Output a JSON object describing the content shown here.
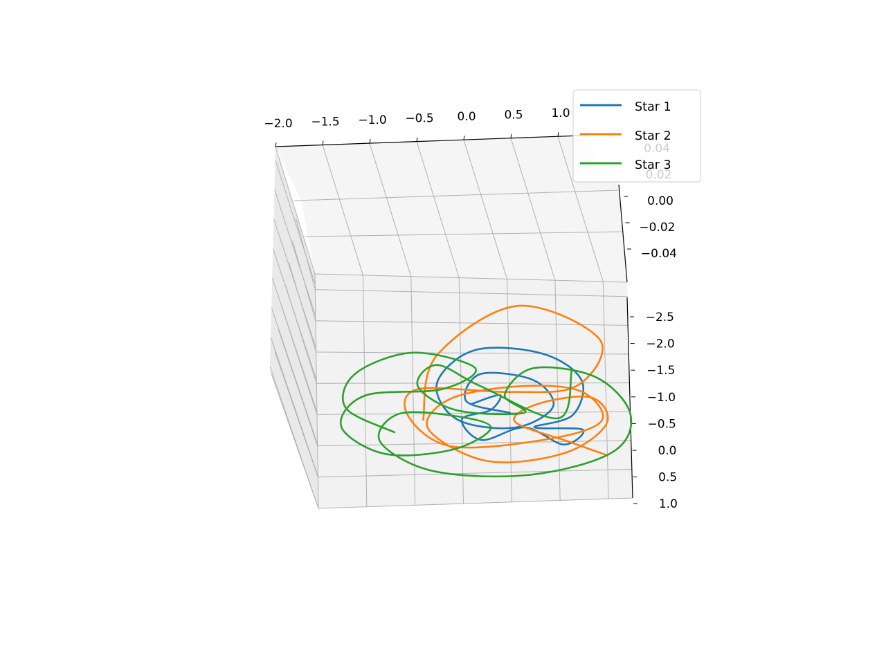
{
  "chart_data": {
    "type": "line",
    "projection": "3d",
    "title": "",
    "xlabel": "",
    "ylabel": "",
    "zlabel": "",
    "grid": true,
    "legend_position": "top-right",
    "x_ticks": [
      "−2.0",
      "−1.5",
      "−1.0",
      "−0.5",
      "0.0",
      "0.5",
      "1.0"
    ],
    "y_ticks": [
      "−2.5",
      "−2.0",
      "−1.5",
      "−1.0",
      "−0.5",
      "0.0",
      "0.5",
      "1.0"
    ],
    "z_ticks": [
      "0.04",
      "0.02",
      "0.00",
      "−0.02",
      "−0.04"
    ],
    "xlim": [
      -2.0,
      1.25
    ],
    "ylim": [
      -2.75,
      1.0
    ],
    "zlim": [
      -0.05,
      0.05
    ],
    "series": [
      {
        "name": "Star 1",
        "color": "#1f77b4",
        "points": [
          [
            0.0,
            -0.5
          ],
          [
            -0.45,
            -0.7
          ],
          [
            -0.3,
            -1.15
          ],
          [
            0.25,
            -1.05
          ],
          [
            0.45,
            -0.6
          ],
          [
            0.05,
            -0.25
          ],
          [
            -0.55,
            -0.4
          ],
          [
            -0.75,
            -1.0
          ],
          [
            -0.35,
            -1.55
          ],
          [
            0.35,
            -1.5
          ],
          [
            0.75,
            -1.05
          ],
          [
            0.65,
            -0.45
          ],
          [
            0.25,
            -0.25
          ],
          [
            0.75,
            -0.2
          ],
          [
            0.55,
            0.05
          ],
          [
            0.15,
            -0.25
          ],
          [
            -0.3,
            -0.05
          ],
          [
            -0.5,
            -0.4
          ],
          [
            -0.2,
            -0.55
          ],
          [
            -0.1,
            -0.8
          ],
          [
            -0.4,
            -0.65
          ]
        ]
      },
      {
        "name": "Star 2",
        "color": "#ff7f0e",
        "points": [
          [
            -0.9,
            -0.4
          ],
          [
            -0.75,
            -1.45
          ],
          [
            0.1,
            -2.3
          ],
          [
            0.95,
            -1.75
          ],
          [
            0.7,
            -0.95
          ],
          [
            0.0,
            -0.85
          ],
          [
            -0.95,
            -0.9
          ],
          [
            -1.05,
            -0.45
          ],
          [
            -0.6,
            0.05
          ],
          [
            0.4,
            -0.05
          ],
          [
            0.95,
            -0.35
          ],
          [
            0.75,
            -0.85
          ],
          [
            0.15,
            -0.95
          ],
          [
            -0.6,
            -0.75
          ],
          [
            -0.85,
            -0.25
          ],
          [
            -0.25,
            0.3
          ],
          [
            0.55,
            0.2
          ],
          [
            1.0,
            -0.3
          ],
          [
            0.85,
            -0.75
          ],
          [
            0.3,
            -0.65
          ],
          [
            0.05,
            -0.35
          ],
          [
            0.6,
            0.0
          ],
          [
            1.0,
            0.25
          ]
        ]
      },
      {
        "name": "Star 3",
        "color": "#2ca02c",
        "points": [
          [
            -1.2,
            -0.2
          ],
          [
            -1.7,
            -0.6
          ],
          [
            -1.6,
            -1.15
          ],
          [
            -1.0,
            -1.5
          ],
          [
            -0.35,
            -1.25
          ],
          [
            -0.7,
            -0.9
          ],
          [
            -1.5,
            -0.8
          ],
          [
            -1.75,
            -0.3
          ],
          [
            -1.3,
            0.15
          ],
          [
            -0.6,
            0.1
          ],
          [
            -0.2,
            -0.25
          ],
          [
            -0.55,
            -0.45
          ],
          [
            -1.15,
            -0.5
          ],
          [
            -1.35,
            -0.05
          ],
          [
            -0.8,
            0.45
          ],
          [
            0.2,
            0.55
          ],
          [
            1.05,
            0.2
          ],
          [
            1.25,
            -0.45
          ],
          [
            0.9,
            -1.1
          ],
          [
            0.25,
            -1.25
          ],
          [
            -0.05,
            -0.8
          ],
          [
            0.15,
            -0.5
          ],
          [
            -0.55,
            -0.55
          ],
          [
            -0.95,
            -0.95
          ],
          [
            -0.75,
            -1.3
          ],
          [
            -0.3,
            -0.95
          ],
          [
            0.5,
            -0.4
          ],
          [
            0.65,
            -1.2
          ]
        ]
      }
    ]
  }
}
